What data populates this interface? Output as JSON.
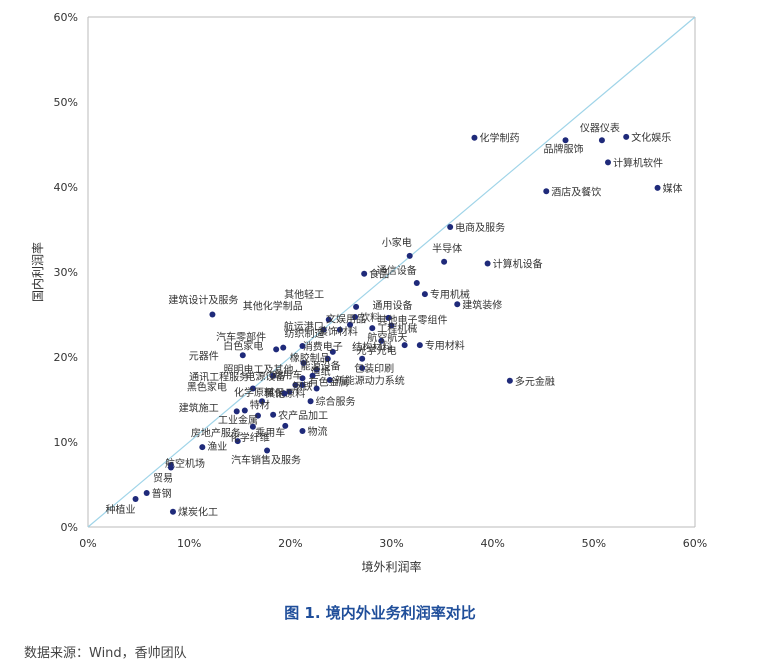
{
  "caption": "图 1. 境内外业务利润率对比",
  "source": "数据来源：Wind，香帅团队",
  "colors": {
    "point": "#1f2a7a",
    "diagonal": "#9fd4e8",
    "axis": "#bbbbbb",
    "text": "#333333"
  },
  "chart_data": {
    "type": "scatter",
    "xlabel": "境外利润率",
    "ylabel": "国内利润率",
    "xlim": [
      0,
      0.6
    ],
    "ylim": [
      0,
      0.6
    ],
    "x_ticks": [
      "0%",
      "10%",
      "20%",
      "30%",
      "40%",
      "50%",
      "60%"
    ],
    "y_ticks": [
      "0%",
      "10%",
      "20%",
      "30%",
      "40%",
      "50%",
      "60%"
    ],
    "reference_line": "y = x",
    "grid": false,
    "points": [
      {
        "label": "化学制药",
        "x": 0.382,
        "y": 0.458
      },
      {
        "label": "仪器仪表",
        "x": 0.508,
        "y": 0.455
      },
      {
        "label": "文化娱乐",
        "x": 0.532,
        "y": 0.459
      },
      {
        "label": "品牌服饰",
        "x": 0.472,
        "y": 0.455
      },
      {
        "label": "计算机软件",
        "x": 0.514,
        "y": 0.429
      },
      {
        "label": "酒店及餐饮",
        "x": 0.453,
        "y": 0.395
      },
      {
        "label": "媒体",
        "x": 0.563,
        "y": 0.399
      },
      {
        "label": "电商及服务",
        "x": 0.358,
        "y": 0.353
      },
      {
        "label": "小家电",
        "x": 0.318,
        "y": 0.319
      },
      {
        "label": "半导体",
        "x": 0.352,
        "y": 0.312
      },
      {
        "label": "计算机设备",
        "x": 0.395,
        "y": 0.31
      },
      {
        "label": "食品",
        "x": 0.273,
        "y": 0.298
      },
      {
        "label": "通信设备",
        "x": 0.325,
        "y": 0.287
      },
      {
        "label": "其他轻工",
        "x": 0.265,
        "y": 0.259
      },
      {
        "label": "专用机械",
        "x": 0.333,
        "y": 0.274
      },
      {
        "label": "建筑装修",
        "x": 0.365,
        "y": 0.262
      },
      {
        "label": "建筑设计及服务",
        "x": 0.123,
        "y": 0.25
      },
      {
        "label": "其他化学制品",
        "x": 0.238,
        "y": 0.244
      },
      {
        "label": "饮料",
        "x": 0.264,
        "y": 0.247
      },
      {
        "label": "通用设备",
        "x": 0.297,
        "y": 0.246
      },
      {
        "label": "其他电子零组件",
        "x": 0.3,
        "y": 0.237
      },
      {
        "label": "航运港口",
        "x": 0.233,
        "y": 0.232
      },
      {
        "label": "文娱用品",
        "x": 0.259,
        "y": 0.238
      },
      {
        "label": "工程机械",
        "x": 0.281,
        "y": 0.234
      },
      {
        "label": "装饰材料",
        "x": 0.249,
        "y": 0.232
      },
      {
        "label": "航空航天",
        "x": 0.29,
        "y": 0.219
      },
      {
        "label": "汽车零部件",
        "x": 0.186,
        "y": 0.209
      },
      {
        "label": "纺织制造",
        "x": 0.212,
        "y": 0.213
      },
      {
        "label": "消费电子",
        "x": 0.242,
        "y": 0.206
      },
      {
        "label": "光学光电",
        "x": 0.313,
        "y": 0.214
      },
      {
        "label": "专用材料",
        "x": 0.328,
        "y": 0.214
      },
      {
        "label": "白色家电",
        "x": 0.193,
        "y": 0.211
      },
      {
        "label": "元器件",
        "x": 0.153,
        "y": 0.202
      },
      {
        "label": "照明电工及其他",
        "x": 0.213,
        "y": 0.193
      },
      {
        "label": "橡胶制品",
        "x": 0.237,
        "y": 0.198
      },
      {
        "label": "结构材料",
        "x": 0.271,
        "y": 0.198
      },
      {
        "label": "造纸",
        "x": 0.226,
        "y": 0.185
      },
      {
        "label": "包装印刷",
        "x": 0.271,
        "y": 0.187
      },
      {
        "label": "多元金融",
        "x": 0.417,
        "y": 0.172
      },
      {
        "label": "通讯工程服务",
        "x": 0.183,
        "y": 0.178
      },
      {
        "label": "商用车",
        "x": 0.212,
        "y": 0.175
      },
      {
        "label": "能源设备",
        "x": 0.222,
        "y": 0.178
      },
      {
        "label": "新能源动力系统",
        "x": 0.239,
        "y": 0.173
      },
      {
        "label": "黑色家电",
        "x": 0.163,
        "y": 0.163
      },
      {
        "label": "电源设备",
        "x": 0.205,
        "y": 0.167
      },
      {
        "label": "钢铁",
        "x": 0.212,
        "y": 0.167
      },
      {
        "label": "有色金属",
        "x": 0.226,
        "y": 0.163
      },
      {
        "label": "其他原料",
        "x": 0.199,
        "y": 0.159
      },
      {
        "label": "环保",
        "x": 0.194,
        "y": 0.157
      },
      {
        "label": "综合服务",
        "x": 0.22,
        "y": 0.148
      },
      {
        "label": "化学原料",
        "x": 0.172,
        "y": 0.148
      },
      {
        "label": "建筑施工",
        "x": 0.147,
        "y": 0.136
      },
      {
        "label": "特材",
        "x": 0.155,
        "y": 0.137
      },
      {
        "label": "农产品加工",
        "x": 0.183,
        "y": 0.132
      },
      {
        "label": "工业金属",
        "x": 0.168,
        "y": 0.131
      },
      {
        "label": "乘用车",
        "x": 0.195,
        "y": 0.119
      },
      {
        "label": "房地产服务",
        "x": 0.163,
        "y": 0.118
      },
      {
        "label": "物流",
        "x": 0.212,
        "y": 0.113
      },
      {
        "label": "化学纤维",
        "x": 0.148,
        "y": 0.101
      },
      {
        "label": "渔业",
        "x": 0.113,
        "y": 0.094
      },
      {
        "label": "汽车销售及服务",
        "x": 0.177,
        "y": 0.09
      },
      {
        "label": "航空机场",
        "x": 0.082,
        "y": 0.073
      },
      {
        "label": "贸易",
        "x": 0.082,
        "y": 0.07
      },
      {
        "label": "普钢",
        "x": 0.058,
        "y": 0.04
      },
      {
        "label": "种植业",
        "x": 0.047,
        "y": 0.033
      },
      {
        "label": "煤炭化工",
        "x": 0.084,
        "y": 0.018
      }
    ]
  }
}
